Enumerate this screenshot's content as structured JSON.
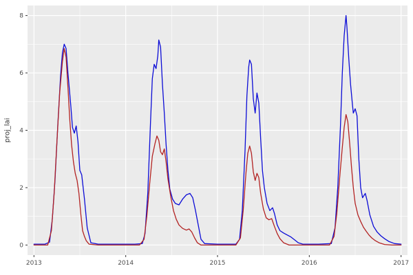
{
  "chart_data": {
    "type": "line",
    "title": "",
    "xlabel": "",
    "ylabel": "proj_lai",
    "legend": "none",
    "panel_bg": "#EBEBEB",
    "grid_color": "#FFFFFF",
    "tick_color": "#333333",
    "tick_label_color": "#4D4D4D",
    "xlim": [
      2012.93,
      2017.07
    ],
    "ylim": [
      -0.35,
      8.35
    ],
    "x_ticks": [
      2013,
      2014,
      2015,
      2016,
      2017
    ],
    "y_ticks": [
      0,
      2,
      4,
      6,
      8
    ],
    "x_minor_ticks": [
      2013.5,
      2014.5,
      2015.5,
      2016.5
    ],
    "y_minor_ticks": [
      1,
      3,
      5,
      7
    ],
    "series": [
      {
        "name": "blue",
        "color": "#0B0BD6",
        "points": [
          [
            2013.0,
            0.03
          ],
          [
            2013.12,
            0.03
          ],
          [
            2013.17,
            0.1
          ],
          [
            2013.2,
            0.9
          ],
          [
            2013.23,
            2.3
          ],
          [
            2013.26,
            4.2
          ],
          [
            2013.29,
            5.9
          ],
          [
            2013.31,
            6.7
          ],
          [
            2013.33,
            7.0
          ],
          [
            2013.35,
            6.85
          ],
          [
            2013.37,
            6.0
          ],
          [
            2013.4,
            4.9
          ],
          [
            2013.42,
            4.1
          ],
          [
            2013.44,
            3.9
          ],
          [
            2013.46,
            4.15
          ],
          [
            2013.48,
            3.6
          ],
          [
            2013.5,
            2.6
          ],
          [
            2013.52,
            2.45
          ],
          [
            2013.55,
            1.6
          ],
          [
            2013.58,
            0.6
          ],
          [
            2013.62,
            0.08
          ],
          [
            2013.7,
            0.03
          ],
          [
            2014.1,
            0.03
          ],
          [
            2014.18,
            0.05
          ],
          [
            2014.21,
            0.4
          ],
          [
            2014.24,
            1.8
          ],
          [
            2014.27,
            4.3
          ],
          [
            2014.29,
            5.8
          ],
          [
            2014.31,
            6.3
          ],
          [
            2014.33,
            6.15
          ],
          [
            2014.35,
            6.6
          ],
          [
            2014.36,
            7.15
          ],
          [
            2014.38,
            6.9
          ],
          [
            2014.4,
            5.6
          ],
          [
            2014.42,
            4.6
          ],
          [
            2014.44,
            3.5
          ],
          [
            2014.46,
            2.6
          ],
          [
            2014.48,
            1.95
          ],
          [
            2014.51,
            1.6
          ],
          [
            2014.54,
            1.45
          ],
          [
            2014.58,
            1.4
          ],
          [
            2014.62,
            1.6
          ],
          [
            2014.66,
            1.75
          ],
          [
            2014.7,
            1.8
          ],
          [
            2014.73,
            1.65
          ],
          [
            2014.76,
            1.2
          ],
          [
            2014.79,
            0.7
          ],
          [
            2014.82,
            0.2
          ],
          [
            2014.86,
            0.05
          ],
          [
            2015.0,
            0.03
          ],
          [
            2015.2,
            0.03
          ],
          [
            2015.24,
            0.2
          ],
          [
            2015.27,
            1.2
          ],
          [
            2015.3,
            3.3
          ],
          [
            2015.32,
            5.2
          ],
          [
            2015.34,
            6.2
          ],
          [
            2015.35,
            6.45
          ],
          [
            2015.37,
            6.3
          ],
          [
            2015.39,
            5.1
          ],
          [
            2015.41,
            4.6
          ],
          [
            2015.43,
            5.3
          ],
          [
            2015.45,
            4.95
          ],
          [
            2015.47,
            3.7
          ],
          [
            2015.49,
            2.6
          ],
          [
            2015.51,
            2.0
          ],
          [
            2015.54,
            1.45
          ],
          [
            2015.57,
            1.2
          ],
          [
            2015.6,
            1.3
          ],
          [
            2015.62,
            1.1
          ],
          [
            2015.65,
            0.7
          ],
          [
            2015.68,
            0.5
          ],
          [
            2015.72,
            0.42
          ],
          [
            2015.76,
            0.35
          ],
          [
            2015.8,
            0.28
          ],
          [
            2015.84,
            0.18
          ],
          [
            2015.88,
            0.08
          ],
          [
            2015.93,
            0.03
          ],
          [
            2016.1,
            0.03
          ],
          [
            2016.24,
            0.05
          ],
          [
            2016.28,
            0.6
          ],
          [
            2016.31,
            2.0
          ],
          [
            2016.34,
            4.2
          ],
          [
            2016.36,
            6.0
          ],
          [
            2016.38,
            7.3
          ],
          [
            2016.4,
            8.0
          ],
          [
            2016.41,
            7.6
          ],
          [
            2016.43,
            6.5
          ],
          [
            2016.45,
            5.6
          ],
          [
            2016.47,
            4.9
          ],
          [
            2016.48,
            4.6
          ],
          [
            2016.5,
            4.75
          ],
          [
            2016.52,
            4.5
          ],
          [
            2016.54,
            3.0
          ],
          [
            2016.56,
            2.0
          ],
          [
            2016.58,
            1.65
          ],
          [
            2016.61,
            1.8
          ],
          [
            2016.63,
            1.55
          ],
          [
            2016.66,
            1.05
          ],
          [
            2016.7,
            0.65
          ],
          [
            2016.74,
            0.45
          ],
          [
            2016.78,
            0.32
          ],
          [
            2016.82,
            0.22
          ],
          [
            2016.87,
            0.12
          ],
          [
            2016.93,
            0.05
          ],
          [
            2017.0,
            0.03
          ]
        ]
      },
      {
        "name": "red",
        "color": "#B22222",
        "points": [
          [
            2013.0,
            0.0
          ],
          [
            2013.15,
            0.0
          ],
          [
            2013.19,
            0.5
          ],
          [
            2013.22,
            1.8
          ],
          [
            2013.25,
            3.6
          ],
          [
            2013.28,
            5.3
          ],
          [
            2013.31,
            6.4
          ],
          [
            2013.33,
            6.85
          ],
          [
            2013.35,
            6.55
          ],
          [
            2013.37,
            5.5
          ],
          [
            2013.39,
            4.4
          ],
          [
            2013.41,
            3.5
          ],
          [
            2013.43,
            2.9
          ],
          [
            2013.45,
            2.5
          ],
          [
            2013.47,
            2.25
          ],
          [
            2013.49,
            1.8
          ],
          [
            2013.51,
            1.1
          ],
          [
            2013.53,
            0.5
          ],
          [
            2013.55,
            0.3
          ],
          [
            2013.57,
            0.15
          ],
          [
            2013.6,
            0.03
          ],
          [
            2013.7,
            0.0
          ],
          [
            2014.15,
            0.0
          ],
          [
            2014.2,
            0.2
          ],
          [
            2014.23,
            1.0
          ],
          [
            2014.26,
            2.1
          ],
          [
            2014.29,
            3.1
          ],
          [
            2014.32,
            3.55
          ],
          [
            2014.34,
            3.8
          ],
          [
            2014.36,
            3.65
          ],
          [
            2014.38,
            3.25
          ],
          [
            2014.4,
            3.15
          ],
          [
            2014.42,
            3.35
          ],
          [
            2014.44,
            2.9
          ],
          [
            2014.46,
            2.3
          ],
          [
            2014.49,
            1.7
          ],
          [
            2014.52,
            1.2
          ],
          [
            2014.55,
            0.9
          ],
          [
            2014.58,
            0.7
          ],
          [
            2014.62,
            0.58
          ],
          [
            2014.66,
            0.52
          ],
          [
            2014.69,
            0.56
          ],
          [
            2014.72,
            0.45
          ],
          [
            2014.75,
            0.25
          ],
          [
            2014.78,
            0.08
          ],
          [
            2014.82,
            0.0
          ],
          [
            2015.2,
            0.0
          ],
          [
            2015.25,
            0.25
          ],
          [
            2015.28,
            1.2
          ],
          [
            2015.31,
            2.5
          ],
          [
            2015.33,
            3.2
          ],
          [
            2015.35,
            3.45
          ],
          [
            2015.37,
            3.2
          ],
          [
            2015.39,
            2.55
          ],
          [
            2015.41,
            2.25
          ],
          [
            2015.43,
            2.5
          ],
          [
            2015.45,
            2.35
          ],
          [
            2015.47,
            1.8
          ],
          [
            2015.5,
            1.25
          ],
          [
            2015.53,
            0.95
          ],
          [
            2015.56,
            0.88
          ],
          [
            2015.59,
            0.92
          ],
          [
            2015.62,
            0.65
          ],
          [
            2015.65,
            0.4
          ],
          [
            2015.68,
            0.22
          ],
          [
            2015.72,
            0.08
          ],
          [
            2015.78,
            0.0
          ],
          [
            2016.22,
            0.0
          ],
          [
            2016.27,
            0.3
          ],
          [
            2016.3,
            1.1
          ],
          [
            2016.33,
            2.3
          ],
          [
            2016.36,
            3.4
          ],
          [
            2016.38,
            4.1
          ],
          [
            2016.4,
            4.55
          ],
          [
            2016.42,
            4.3
          ],
          [
            2016.44,
            3.55
          ],
          [
            2016.46,
            2.7
          ],
          [
            2016.48,
            2.0
          ],
          [
            2016.5,
            1.45
          ],
          [
            2016.53,
            1.05
          ],
          [
            2016.56,
            0.82
          ],
          [
            2016.59,
            0.62
          ],
          [
            2016.62,
            0.48
          ],
          [
            2016.65,
            0.35
          ],
          [
            2016.68,
            0.25
          ],
          [
            2016.72,
            0.15
          ],
          [
            2016.76,
            0.08
          ],
          [
            2016.82,
            0.02
          ],
          [
            2016.9,
            0.0
          ],
          [
            2017.0,
            0.0
          ]
        ]
      }
    ]
  }
}
